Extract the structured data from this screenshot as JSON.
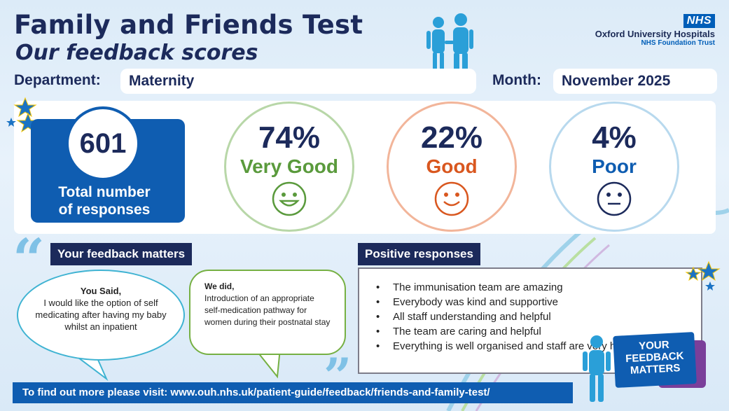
{
  "header": {
    "title": "Family and Friends Test",
    "subtitle": "Our feedback scores"
  },
  "logo": {
    "badge": "NHS",
    "org": "Oxford University Hospitals",
    "trust": "NHS Foundation Trust"
  },
  "department": {
    "label": "Department:",
    "value": "Maternity"
  },
  "month": {
    "label": "Month:",
    "value": "November 2025"
  },
  "total": {
    "value": "601",
    "label_line1": "Total number",
    "label_line2": "of responses"
  },
  "scores": [
    {
      "percent": "74%",
      "label": "Very Good",
      "color": "#5a9a3c",
      "ring": "#b8d7a8",
      "face": "happy"
    },
    {
      "percent": "22%",
      "label": "Good",
      "color": "#d9571f",
      "ring": "#f2b59a",
      "face": "smile"
    },
    {
      "percent": "4%",
      "label": "Poor",
      "color": "#0f5db1",
      "ring": "#b8d9ee",
      "face": "neutral"
    }
  ],
  "feedback": {
    "tag": "Your feedback matters",
    "you_said_title": "You Said,",
    "you_said_text": "I would like the option of self medicating after having my baby whilst an inpatient",
    "we_did_title": "We did,",
    "we_did_text": "Introduction of an appropriate self-medication pathway for women during their postnatal stay"
  },
  "positive": {
    "tag": "Positive responses",
    "items": [
      "The immunisation team are amazing",
      "Everybody was kind and supportive",
      "All staff understanding and helpful",
      "The team are caring and helpful",
      "Everything is well organised and staff are very helpful"
    ]
  },
  "badge": {
    "line1": "YOUR",
    "line2": "FEEDBACK",
    "line3": "MATTERS"
  },
  "footer": {
    "text": "To find out more please visit: www.ouh.nhs.uk/patient-guide/feedback/friends-and-family-test/"
  },
  "colors": {
    "navy": "#1c2a5b",
    "blue": "#0f5db1",
    "background": "#dcebf8"
  }
}
